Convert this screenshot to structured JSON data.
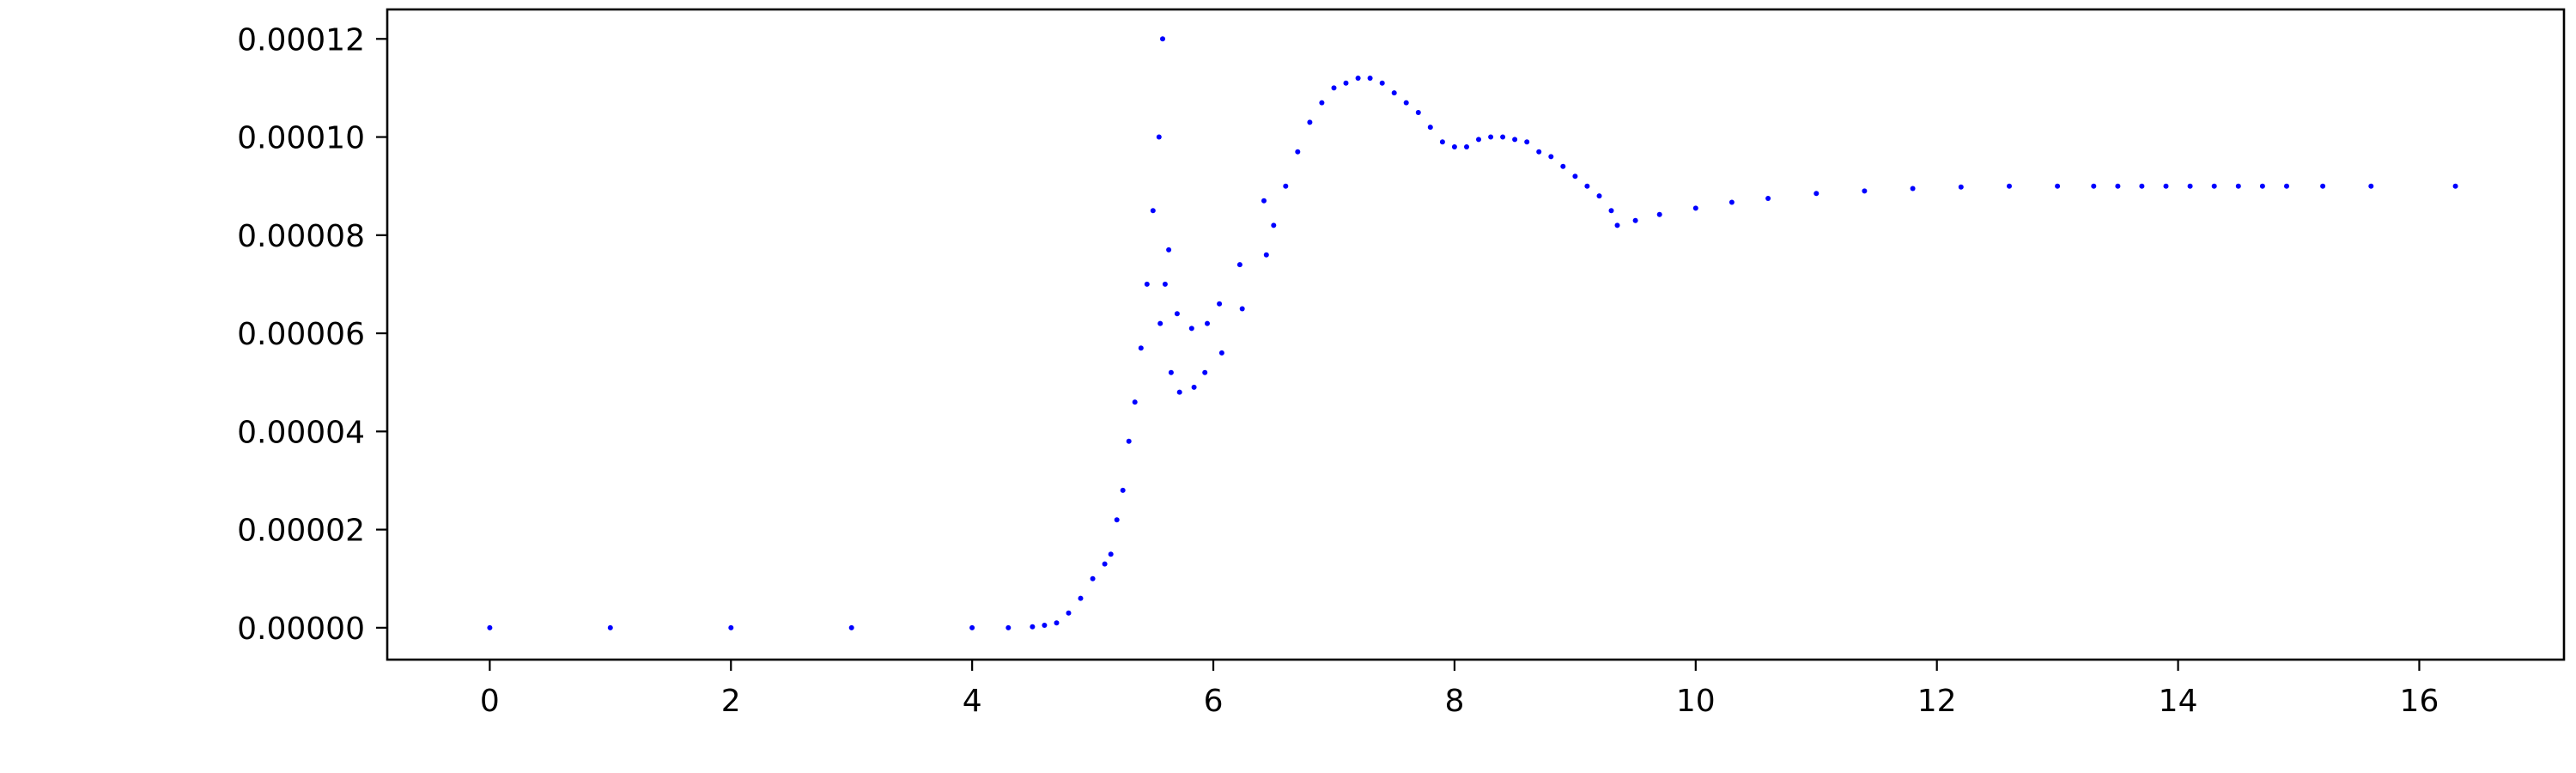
{
  "chart_data": {
    "type": "scatter",
    "title": "",
    "xlabel": "",
    "ylabel": "",
    "xlim": [
      -0.85,
      17.2
    ],
    "ylim": [
      -6.5e-06,
      0.000126
    ],
    "xticks": [
      0,
      2,
      4,
      6,
      8,
      10,
      12,
      14,
      16
    ],
    "xtick_labels": [
      "0",
      "2",
      "4",
      "6",
      "8",
      "10",
      "12",
      "14",
      "16"
    ],
    "yticks": [
      0.0,
      2e-05,
      4e-05,
      6e-05,
      8e-05,
      0.0001,
      0.00012
    ],
    "ytick_labels": [
      "0.00000",
      "0.00002",
      "0.00004",
      "0.00006",
      "0.00008",
      "0.00010",
      "0.00012"
    ],
    "grid": false,
    "legend": "none",
    "series": [
      {
        "color": "#0000ff",
        "points": [
          [
            0.0,
            0.0
          ],
          [
            1.0,
            0.0
          ],
          [
            2.0,
            0.0
          ],
          [
            3.0,
            0.0
          ],
          [
            4.0,
            0.0
          ],
          [
            4.3,
            0.0
          ],
          [
            4.5,
            2e-07
          ],
          [
            4.6,
            5e-07
          ],
          [
            4.7,
            1e-06
          ],
          [
            4.8,
            3e-06
          ],
          [
            4.9,
            6e-06
          ],
          [
            5.0,
            1e-05
          ],
          [
            5.1,
            1.3e-05
          ],
          [
            5.15,
            1.5e-05
          ],
          [
            5.2,
            2.2e-05
          ],
          [
            5.25,
            2.8e-05
          ],
          [
            5.3,
            3.8e-05
          ],
          [
            5.35,
            4.6e-05
          ],
          [
            5.4,
            5.7e-05
          ],
          [
            5.45,
            7e-05
          ],
          [
            5.5,
            8.5e-05
          ],
          [
            5.55,
            0.0001
          ],
          [
            5.58,
            0.00012
          ],
          [
            5.56,
            6.2e-05
          ],
          [
            5.6,
            7e-05
          ],
          [
            5.63,
            7.7e-05
          ],
          [
            5.65,
            5.2e-05
          ],
          [
            5.7,
            6.4e-05
          ],
          [
            5.72,
            4.8e-05
          ],
          [
            5.82,
            6.1e-05
          ],
          [
            5.84,
            4.9e-05
          ],
          [
            5.95,
            6.2e-05
          ],
          [
            5.93,
            5.2e-05
          ],
          [
            6.05,
            6.6e-05
          ],
          [
            6.07,
            5.6e-05
          ],
          [
            6.22,
            7.4e-05
          ],
          [
            6.24,
            6.5e-05
          ],
          [
            6.42,
            8.7e-05
          ],
          [
            6.44,
            7.6e-05
          ],
          [
            6.5,
            8.2e-05
          ],
          [
            6.6,
            9e-05
          ],
          [
            6.7,
            9.7e-05
          ],
          [
            6.8,
            0.000103
          ],
          [
            6.9,
            0.000107
          ],
          [
            7.0,
            0.00011
          ],
          [
            7.1,
            0.000111
          ],
          [
            7.2,
            0.000112
          ],
          [
            7.3,
            0.000112
          ],
          [
            7.4,
            0.000111
          ],
          [
            7.5,
            0.000109
          ],
          [
            7.6,
            0.000107
          ],
          [
            7.7,
            0.000105
          ],
          [
            7.8,
            0.000102
          ],
          [
            7.9,
            9.9e-05
          ],
          [
            8.0,
            9.8e-05
          ],
          [
            8.1,
            9.8e-05
          ],
          [
            8.2,
            9.95e-05
          ],
          [
            8.3,
            0.0001
          ],
          [
            8.4,
            0.0001
          ],
          [
            8.5,
            9.95e-05
          ],
          [
            8.6,
            9.9e-05
          ],
          [
            8.7,
            9.7e-05
          ],
          [
            8.8,
            9.6e-05
          ],
          [
            8.9,
            9.4e-05
          ],
          [
            9.0,
            9.2e-05
          ],
          [
            9.1,
            9e-05
          ],
          [
            9.2,
            8.8e-05
          ],
          [
            9.3,
            8.5e-05
          ],
          [
            9.35,
            8.2e-05
          ],
          [
            9.5,
            8.3e-05
          ],
          [
            9.7,
            8.42e-05
          ],
          [
            10.0,
            8.55e-05
          ],
          [
            10.3,
            8.67e-05
          ],
          [
            10.6,
            8.75e-05
          ],
          [
            11.0,
            8.85e-05
          ],
          [
            11.4,
            8.9e-05
          ],
          [
            11.8,
            8.95e-05
          ],
          [
            12.2,
            8.98e-05
          ],
          [
            12.6,
            9e-05
          ],
          [
            13.0,
            9e-05
          ],
          [
            13.3,
            9e-05
          ],
          [
            13.5,
            9e-05
          ],
          [
            13.7,
            9e-05
          ],
          [
            13.9,
            9e-05
          ],
          [
            14.1,
            9e-05
          ],
          [
            14.3,
            9e-05
          ],
          [
            14.5,
            9e-05
          ],
          [
            14.7,
            9e-05
          ],
          [
            14.9,
            9e-05
          ],
          [
            15.2,
            9e-05
          ],
          [
            15.6,
            9e-05
          ],
          [
            16.3,
            9e-05
          ]
        ]
      }
    ]
  }
}
